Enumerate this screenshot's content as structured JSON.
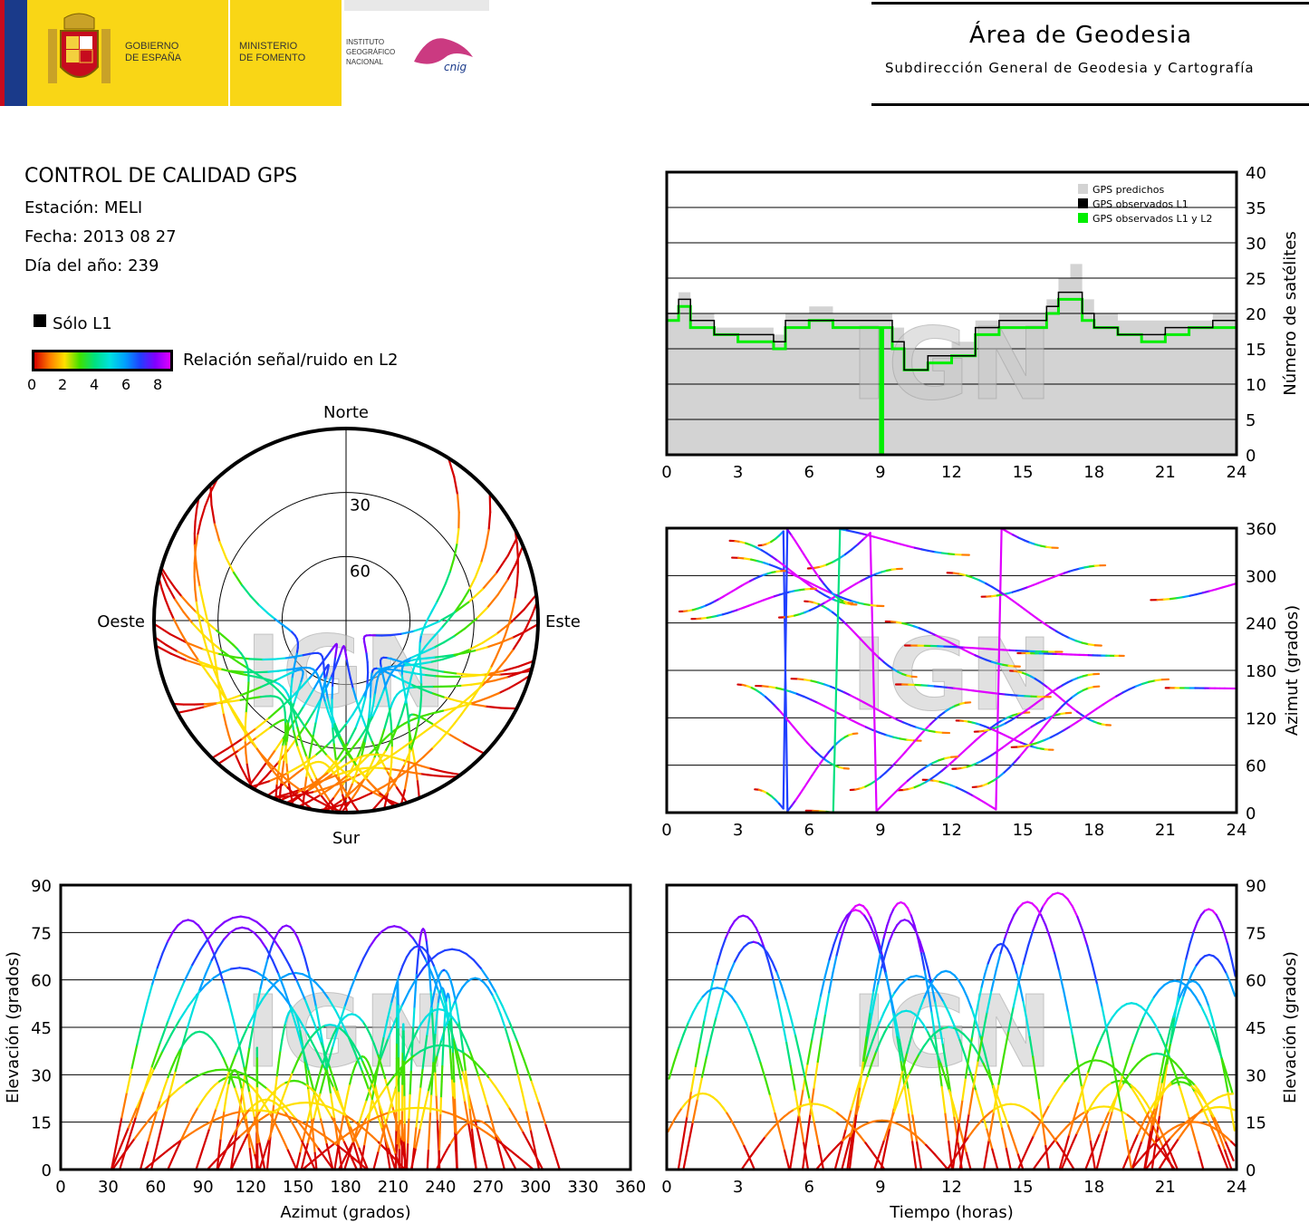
{
  "header": {
    "gov_line1": "GOBIERNO",
    "gov_line2": "DE ESPAÑA",
    "ministry_line1": "MINISTERIO",
    "ministry_line2": "DE FOMENTO",
    "ign_line1": "INSTITUTO",
    "ign_line2": "GEOGRÁFICO",
    "ign_line3": "NACIONAL",
    "cnig_logo": "cnig",
    "area_title": "Área de Geodesia",
    "area_subtitle": "Subdirección General de Geodesia y Cartografía"
  },
  "info": {
    "title": "CONTROL DE CALIDAD GPS",
    "station": "Estación: MELI",
    "date": "Fecha: 2013 08 27",
    "doy": "Día del año: 239",
    "legend_l1": "Sólo L1",
    "snr_label": "Relación señal/ruido en L2",
    "snr_ticks": [
      "0",
      "2",
      "4",
      "6",
      "8"
    ]
  },
  "watermark": "IGN",
  "colors": {
    "snr_scale": [
      "#d40000",
      "#ff7a00",
      "#ffe000",
      "#40e000",
      "#00e080",
      "#00e0e0",
      "#00a0ff",
      "#2040ff",
      "#8000ff",
      "#e000ff"
    ],
    "predicted": "#d3d3d3",
    "observed_l1": "#000000",
    "observed_l1l2": "#00ee00"
  },
  "chart_data": [
    {
      "id": "satellite-count",
      "type": "area",
      "ylabel": "Número de satélites",
      "xlim": [
        0,
        24
      ],
      "ylim": [
        0,
        40
      ],
      "x_ticks": [
        "0",
        "3",
        "6",
        "9",
        "12",
        "15",
        "18",
        "21",
        "24"
      ],
      "y_ticks": [
        "0",
        "5",
        "10",
        "15",
        "20",
        "25",
        "30",
        "35",
        "40"
      ],
      "grid": "horizontal",
      "legend_position": "top-right",
      "series": [
        {
          "name": "GPS predichos",
          "x": [
            0,
            0.5,
            1,
            2,
            3,
            4,
            4.5,
            5,
            6,
            7,
            8,
            9,
            9.5,
            10,
            11,
            12,
            13,
            14,
            15,
            16,
            16.5,
            17,
            17.5,
            18,
            19,
            20,
            21,
            22,
            23,
            24
          ],
          "values": [
            20,
            23,
            20,
            18,
            18,
            18,
            17,
            20,
            21,
            20,
            20,
            20,
            18,
            15,
            15,
            16,
            19,
            20,
            20,
            22,
            25,
            27,
            22,
            20,
            19,
            19,
            19,
            19,
            20,
            20
          ]
        },
        {
          "name": "GPS observados L1",
          "x": [
            0,
            0.5,
            1,
            2,
            3,
            4,
            4.5,
            5,
            6,
            7,
            8,
            9,
            9.5,
            10,
            11,
            12,
            13,
            14,
            15,
            16,
            16.5,
            17,
            17.5,
            18,
            19,
            20,
            21,
            22,
            23,
            24
          ],
          "values": [
            20,
            22,
            19,
            17,
            17,
            17,
            16,
            19,
            19,
            19,
            19,
            19,
            16,
            12,
            14,
            14,
            18,
            19,
            19,
            21,
            23,
            23,
            20,
            18,
            17,
            17,
            18,
            18,
            19,
            19
          ]
        },
        {
          "name": "GPS observados L1 y L2",
          "x": [
            0,
            0.5,
            1,
            2,
            3,
            4,
            4.5,
            5,
            6,
            7,
            8,
            8.9,
            9,
            9.1,
            9.5,
            10,
            11,
            12,
            13,
            14,
            15,
            16,
            16.5,
            17,
            17.5,
            18,
            19,
            20,
            21,
            22,
            23,
            24
          ],
          "values": [
            19,
            21,
            18,
            17,
            16,
            16,
            15,
            18,
            19,
            18,
            18,
            18,
            0,
            18,
            15,
            12,
            13,
            14,
            17,
            18,
            18,
            20,
            22,
            22,
            19,
            18,
            17,
            16,
            17,
            18,
            18,
            18
          ]
        }
      ]
    },
    {
      "id": "azimuth-time",
      "type": "scatter",
      "ylabel": "Azimut (grados)",
      "xlim": [
        0,
        24
      ],
      "ylim": [
        0,
        360
      ],
      "x_ticks": [
        "0",
        "3",
        "6",
        "9",
        "12",
        "15",
        "18",
        "21",
        "24"
      ],
      "y_ticks": [
        "0",
        "60",
        "120",
        "180",
        "240",
        "300",
        "360"
      ],
      "grid": "horizontal"
    },
    {
      "id": "elevation-azimuth",
      "type": "scatter",
      "xlabel": "Azimut (grados)",
      "ylabel": "Elevación (grados)",
      "xlim": [
        0,
        360
      ],
      "ylim": [
        0,
        90
      ],
      "x_ticks": [
        "0",
        "30",
        "60",
        "90",
        "120",
        "150",
        "180",
        "210",
        "240",
        "270",
        "300",
        "330",
        "360"
      ],
      "y_ticks": [
        "0",
        "15",
        "30",
        "45",
        "60",
        "75",
        "90"
      ],
      "grid": "horizontal"
    },
    {
      "id": "elevation-time",
      "type": "scatter",
      "xlabel": "Tiempo (horas)",
      "ylabel": "Elevación (grados)",
      "xlim": [
        0,
        24
      ],
      "ylim": [
        0,
        90
      ],
      "x_ticks": [
        "0",
        "3",
        "6",
        "9",
        "12",
        "15",
        "18",
        "21",
        "24"
      ],
      "y_ticks": [
        "0",
        "15",
        "30",
        "45",
        "60",
        "75",
        "90"
      ],
      "grid": "horizontal"
    },
    {
      "id": "skyplot",
      "type": "scatter",
      "labels": {
        "north": "Norte",
        "south": "Sur",
        "east": "Este",
        "west": "Oeste"
      },
      "rings": [
        "30",
        "60"
      ]
    }
  ]
}
